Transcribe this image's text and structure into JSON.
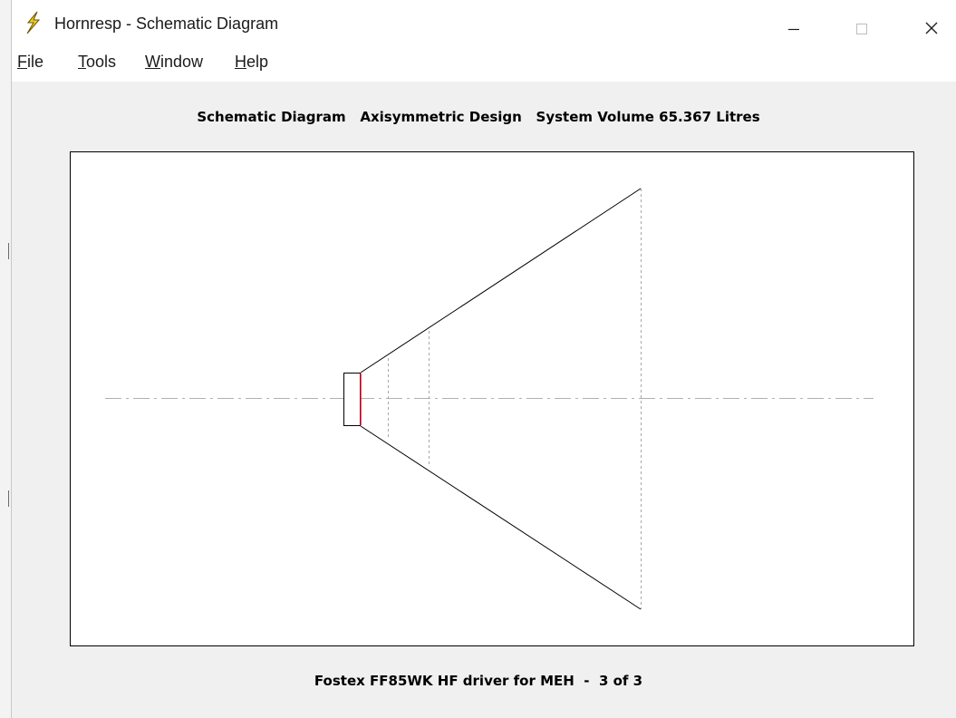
{
  "window": {
    "title": "Hornresp - Schematic Diagram",
    "controls": {
      "minimize": "—",
      "maximize": "☐",
      "close": "✕"
    }
  },
  "menu": [
    {
      "underline": "F",
      "rest": "ile"
    },
    {
      "underline": "T",
      "rest": "ools"
    },
    {
      "underline": "W",
      "rest": "indow"
    },
    {
      "underline": "H",
      "rest": "elp"
    }
  ],
  "diagram": {
    "header": "Schematic Diagram   Axisymmetric Design   System Volume 65.367 Litres",
    "footer": "Fostex FF85WK HF driver for MEH  -  3 of 3",
    "colors": {
      "outline": "#000000",
      "axis": "#b0b0b0",
      "guide": "#a8a8a8",
      "driver": "#e0102c"
    }
  }
}
